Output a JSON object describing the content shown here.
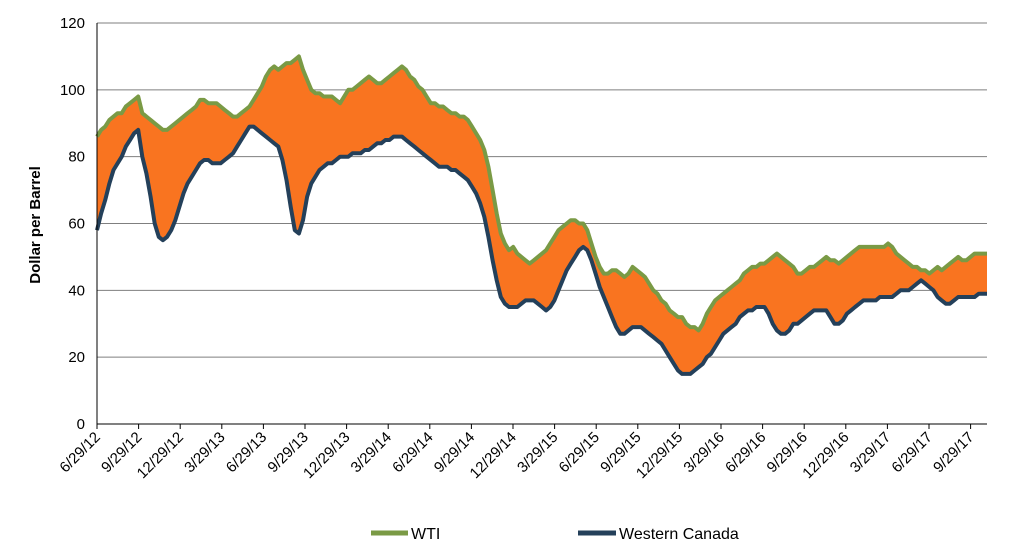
{
  "chart_data": {
    "type": "area",
    "title": "",
    "xlabel": "",
    "ylabel": "Dollar per Barrel",
    "ylim": [
      0,
      120
    ],
    "yticks": [
      "0",
      "20",
      "40",
      "60",
      "80",
      "100",
      "120"
    ],
    "xticks": [
      "6/29/12",
      "9/29/12",
      "12/29/12",
      "3/29/13",
      "6/29/13",
      "9/29/13",
      "12/29/13",
      "3/29/14",
      "6/29/14",
      "9/29/14",
      "12/29/14",
      "3/29/15",
      "6/29/15",
      "9/29/15",
      "12/29/15",
      "3/29/16",
      "6/29/16",
      "9/29/16",
      "12/29/16",
      "3/29/17",
      "6/29/17",
      "9/29/17"
    ],
    "spread_fill_color": "#f97420",
    "series": [
      {
        "name": "WTI",
        "color": "#7a9a45",
        "values": [
          86,
          88,
          89,
          91,
          92,
          93,
          93,
          95,
          96,
          97,
          98,
          93,
          92,
          91,
          90,
          89,
          88,
          88,
          89,
          90,
          91,
          92,
          93,
          94,
          95,
          97,
          97,
          96,
          96,
          96,
          95,
          94,
          93,
          92,
          92,
          93,
          94,
          95,
          97,
          99,
          101,
          104,
          106,
          107,
          106,
          107,
          108,
          108,
          109,
          110,
          106,
          103,
          100,
          99,
          99,
          98,
          98,
          98,
          97,
          96,
          98,
          100,
          100,
          101,
          102,
          103,
          104,
          103,
          102,
          102,
          103,
          104,
          105,
          106,
          107,
          106,
          104,
          103,
          101,
          100,
          98,
          96,
          96,
          95,
          95,
          94,
          93,
          93,
          92,
          92,
          91,
          89,
          87,
          85,
          82,
          77,
          70,
          63,
          57,
          54,
          52,
          53,
          51,
          50,
          49,
          48,
          49,
          50,
          51,
          52,
          54,
          56,
          58,
          59,
          60,
          61,
          61,
          60,
          60,
          58,
          54,
          50,
          47,
          45,
          45,
          46,
          46,
          45,
          44,
          45,
          47,
          46,
          45,
          44,
          42,
          40,
          39,
          37,
          36,
          34,
          33,
          32,
          32,
          30,
          29,
          29,
          28,
          30,
          33,
          35,
          37,
          38,
          39,
          40,
          41,
          42,
          43,
          45,
          46,
          47,
          47,
          48,
          48,
          49,
          50,
          51,
          50,
          49,
          48,
          47,
          45,
          45,
          46,
          47,
          47,
          48,
          49,
          50,
          49,
          49,
          48,
          49,
          50,
          51,
          52,
          53,
          53,
          53,
          53,
          53,
          53,
          53,
          54,
          53,
          51,
          50,
          49,
          48,
          47,
          47,
          46,
          46,
          45,
          46,
          47,
          46,
          47,
          48,
          49,
          50,
          49,
          49,
          50,
          51,
          51,
          51,
          51
        ]
      },
      {
        "name": "Western Canada",
        "color": "#24405a",
        "values": [
          58,
          63,
          67,
          72,
          76,
          78,
          80,
          83,
          85,
          87,
          88,
          80,
          75,
          68,
          60,
          56,
          55,
          56,
          58,
          61,
          65,
          69,
          72,
          74,
          76,
          78,
          79,
          79,
          78,
          78,
          78,
          79,
          80,
          81,
          83,
          85,
          87,
          89,
          89,
          88,
          87,
          86,
          85,
          84,
          83,
          79,
          73,
          65,
          58,
          57,
          61,
          68,
          72,
          74,
          76,
          77,
          78,
          78,
          79,
          80,
          80,
          80,
          81,
          81,
          81,
          82,
          82,
          83,
          84,
          84,
          85,
          85,
          86,
          86,
          86,
          85,
          84,
          83,
          82,
          81,
          80,
          79,
          78,
          77,
          77,
          77,
          76,
          76,
          75,
          74,
          73,
          71,
          69,
          66,
          62,
          56,
          49,
          43,
          38,
          36,
          35,
          35,
          35,
          36,
          37,
          37,
          37,
          36,
          35,
          34,
          35,
          37,
          40,
          43,
          46,
          48,
          50,
          52,
          53,
          52,
          49,
          45,
          41,
          38,
          35,
          32,
          29,
          27,
          27,
          28,
          29,
          29,
          29,
          28,
          27,
          26,
          25,
          24,
          22,
          20,
          18,
          16,
          15,
          15,
          15,
          16,
          17,
          18,
          20,
          21,
          23,
          25,
          27,
          28,
          29,
          30,
          32,
          33,
          34,
          34,
          35,
          35,
          35,
          33,
          30,
          28,
          27,
          27,
          28,
          30,
          30,
          31,
          32,
          33,
          34,
          34,
          34,
          34,
          32,
          30,
          30,
          31,
          33,
          34,
          35,
          36,
          37,
          37,
          37,
          37,
          38,
          38,
          38,
          38,
          39,
          40,
          40,
          40,
          41,
          42,
          43,
          42,
          41,
          40,
          38,
          37,
          36,
          36,
          37,
          38,
          38,
          38,
          38,
          38,
          39,
          39,
          39
        ]
      }
    ]
  }
}
